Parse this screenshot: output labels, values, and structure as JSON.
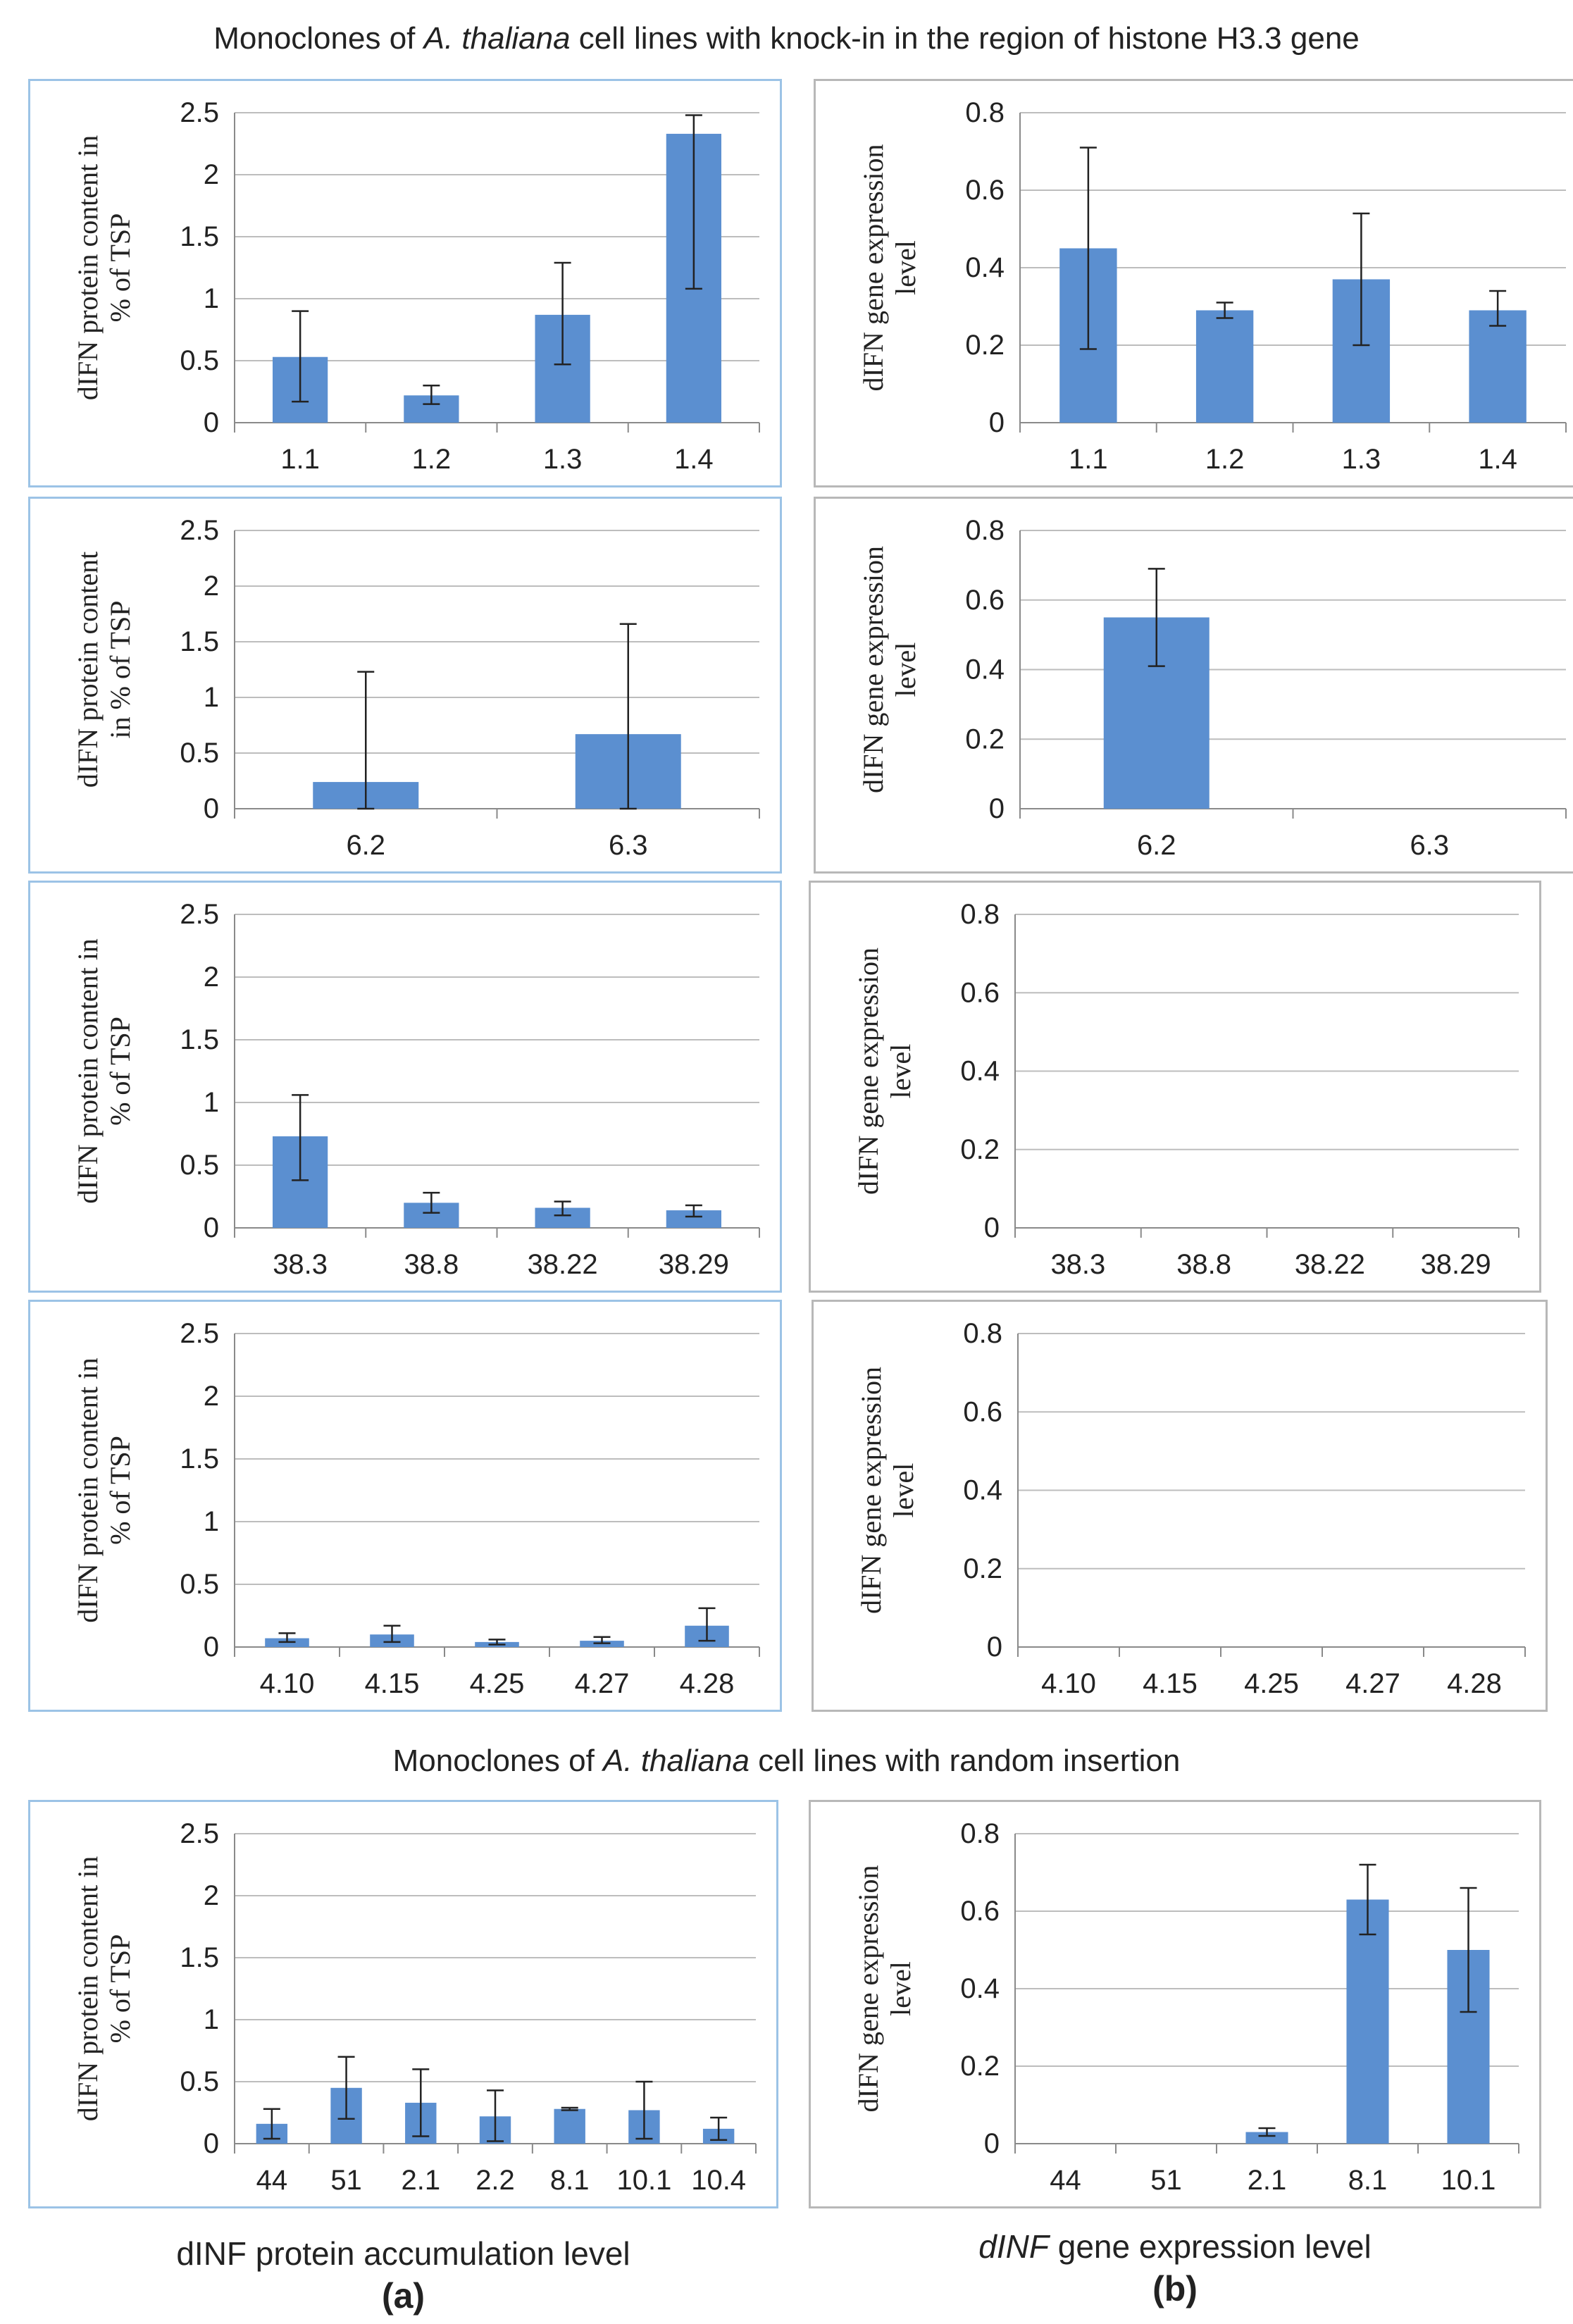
{
  "headings": {
    "knock_in": {
      "prefix": "Monoclones of ",
      "species": "A. thaliana",
      "suffix": " cell lines with knock-in in the region of histone H3.3 gene"
    },
    "random": {
      "prefix": "Monoclones of ",
      "species": "A. thaliana",
      "suffix": " cell lines with random insertion"
    }
  },
  "captions": {
    "a": "dINF protein accumulation level",
    "b_italic": "dINF",
    "b_rest": " gene expression level"
  },
  "part_labels": {
    "a": "(a)",
    "b": "(b)"
  },
  "colors": {
    "bar": "#5b8fd0",
    "grid": "#bdbdbd",
    "axis": "#8a8a8a",
    "blue_border": "#9cc3e6",
    "gray_border": "#b8b8b8"
  },
  "chart_data": [
    {
      "id": "p1",
      "type": "bar",
      "ylabel_lines": [
        "dIFN protein content in",
        "% of TSP"
      ],
      "ylim": [
        0,
        2.5
      ],
      "yticks": [
        "0",
        "0.5",
        "1",
        "1.5",
        "2",
        "2.5"
      ],
      "categories": [
        "1.1",
        "1.2",
        "1.3",
        "1.4"
      ],
      "values": [
        0.53,
        0.22,
        0.87,
        2.33
      ],
      "err_low": [
        0.17,
        0.15,
        0.47,
        1.08
      ],
      "err_high": [
        0.9,
        0.3,
        1.29,
        2.48
      ]
    },
    {
      "id": "e1",
      "type": "bar",
      "ylabel_lines": [
        "dIFN gene expression",
        "level"
      ],
      "ylim": [
        0,
        0.8
      ],
      "yticks": [
        "0",
        "0.2",
        "0.4",
        "0.6",
        "0.8"
      ],
      "categories": [
        "1.1",
        "1.2",
        "1.3",
        "1.4"
      ],
      "values": [
        0.45,
        0.29,
        0.37,
        0.29
      ],
      "err_low": [
        0.19,
        0.27,
        0.2,
        0.25
      ],
      "err_high": [
        0.71,
        0.31,
        0.54,
        0.34
      ]
    },
    {
      "id": "p2",
      "type": "bar",
      "ylabel_lines": [
        "dIFN protein content",
        "in % of TSP"
      ],
      "ylim": [
        0,
        2.5
      ],
      "yticks": [
        "0",
        "0.5",
        "1",
        "1.5",
        "2",
        "2.5"
      ],
      "categories": [
        "6.2",
        "6.3"
      ],
      "values": [
        0.24,
        0.67
      ],
      "err_low": [
        0,
        0
      ],
      "err_high": [
        1.23,
        1.66
      ]
    },
    {
      "id": "e2",
      "type": "bar",
      "ylabel_lines": [
        "dIFN gene expression",
        "level"
      ],
      "ylim": [
        0,
        0.8
      ],
      "yticks": [
        "0",
        "0.2",
        "0.4",
        "0.6",
        "0.8"
      ],
      "categories": [
        "6.2",
        "6.3"
      ],
      "values": [
        0.55,
        0
      ],
      "err_low": [
        0.41,
        null
      ],
      "err_high": [
        0.69,
        null
      ]
    },
    {
      "id": "p3",
      "type": "bar",
      "ylabel_lines": [
        "dIFN protein content in",
        "% of TSP"
      ],
      "ylim": [
        0,
        2.5
      ],
      "yticks": [
        "0",
        "0.5",
        "1",
        "1.5",
        "2",
        "2.5"
      ],
      "categories": [
        "38.3",
        "38.8",
        "38.22",
        "38.29"
      ],
      "values": [
        0.73,
        0.2,
        0.16,
        0.14
      ],
      "err_low": [
        0.38,
        0.12,
        0.1,
        0.09
      ],
      "err_high": [
        1.06,
        0.28,
        0.21,
        0.18
      ]
    },
    {
      "id": "e3",
      "type": "bar",
      "ylabel_lines": [
        "dIFN gene expression",
        "level"
      ],
      "ylim": [
        0,
        0.8
      ],
      "yticks": [
        "0",
        "0.2",
        "0.4",
        "0.6",
        "0.8"
      ],
      "categories": [
        "38.3",
        "38.8",
        "38.22",
        "38.29"
      ],
      "values": [
        0,
        0,
        0,
        0
      ],
      "err_low": [
        null,
        null,
        null,
        null
      ],
      "err_high": [
        null,
        null,
        null,
        null
      ]
    },
    {
      "id": "p4",
      "type": "bar",
      "ylabel_lines": [
        "dIFN protein content in",
        "% of TSP"
      ],
      "ylim": [
        0,
        2.5
      ],
      "yticks": [
        "0",
        "0.5",
        "1",
        "1.5",
        "2",
        "2.5"
      ],
      "categories": [
        "4.10",
        "4.15",
        "4.25",
        "4.27",
        "4.28"
      ],
      "values": [
        0.07,
        0.1,
        0.04,
        0.05,
        0.17
      ],
      "err_low": [
        0.04,
        0.04,
        0.02,
        0.03,
        0.05
      ],
      "err_high": [
        0.11,
        0.17,
        0.06,
        0.08,
        0.31
      ]
    },
    {
      "id": "e4",
      "type": "bar",
      "ylabel_lines": [
        "dIFN gene expression",
        "level"
      ],
      "ylim": [
        0,
        0.8
      ],
      "yticks": [
        "0",
        "0.2",
        "0.4",
        "0.6",
        "0.8"
      ],
      "categories": [
        "4.10",
        "4.15",
        "4.25",
        "4.27",
        "4.28"
      ],
      "values": [
        0,
        0,
        0,
        0,
        0
      ],
      "err_low": [
        null,
        null,
        null,
        null,
        null
      ],
      "err_high": [
        null,
        null,
        null,
        null,
        null
      ]
    },
    {
      "id": "p5",
      "type": "bar",
      "ylabel_lines": [
        "dIFN protein content in",
        "% of TSP"
      ],
      "ylim": [
        0,
        2.5
      ],
      "yticks": [
        "0",
        "0.5",
        "1",
        "1.5",
        "2",
        "2.5"
      ],
      "categories": [
        "44",
        "51",
        "2.1",
        "2.2",
        "8.1",
        "10.1",
        "10.4"
      ],
      "values": [
        0.16,
        0.45,
        0.33,
        0.22,
        0.28,
        0.27,
        0.12
      ],
      "err_low": [
        0.04,
        0.2,
        0.06,
        0.02,
        0.27,
        0.04,
        0.03
      ],
      "err_high": [
        0.28,
        0.7,
        0.6,
        0.43,
        0.29,
        0.5,
        0.21
      ]
    },
    {
      "id": "e5",
      "type": "bar",
      "ylabel_lines": [
        "dIFN gene expression",
        "level"
      ],
      "ylim": [
        0,
        0.8
      ],
      "yticks": [
        "0",
        "0.2",
        "0.4",
        "0.6",
        "0.8"
      ],
      "categories": [
        "44",
        "51",
        "2.1",
        "8.1",
        "10.1"
      ],
      "values": [
        0,
        0,
        0.03,
        0.63,
        0.5
      ],
      "err_low": [
        null,
        null,
        0.02,
        0.54,
        0.34
      ],
      "err_high": [
        null,
        null,
        0.04,
        0.72,
        0.66
      ]
    }
  ]
}
